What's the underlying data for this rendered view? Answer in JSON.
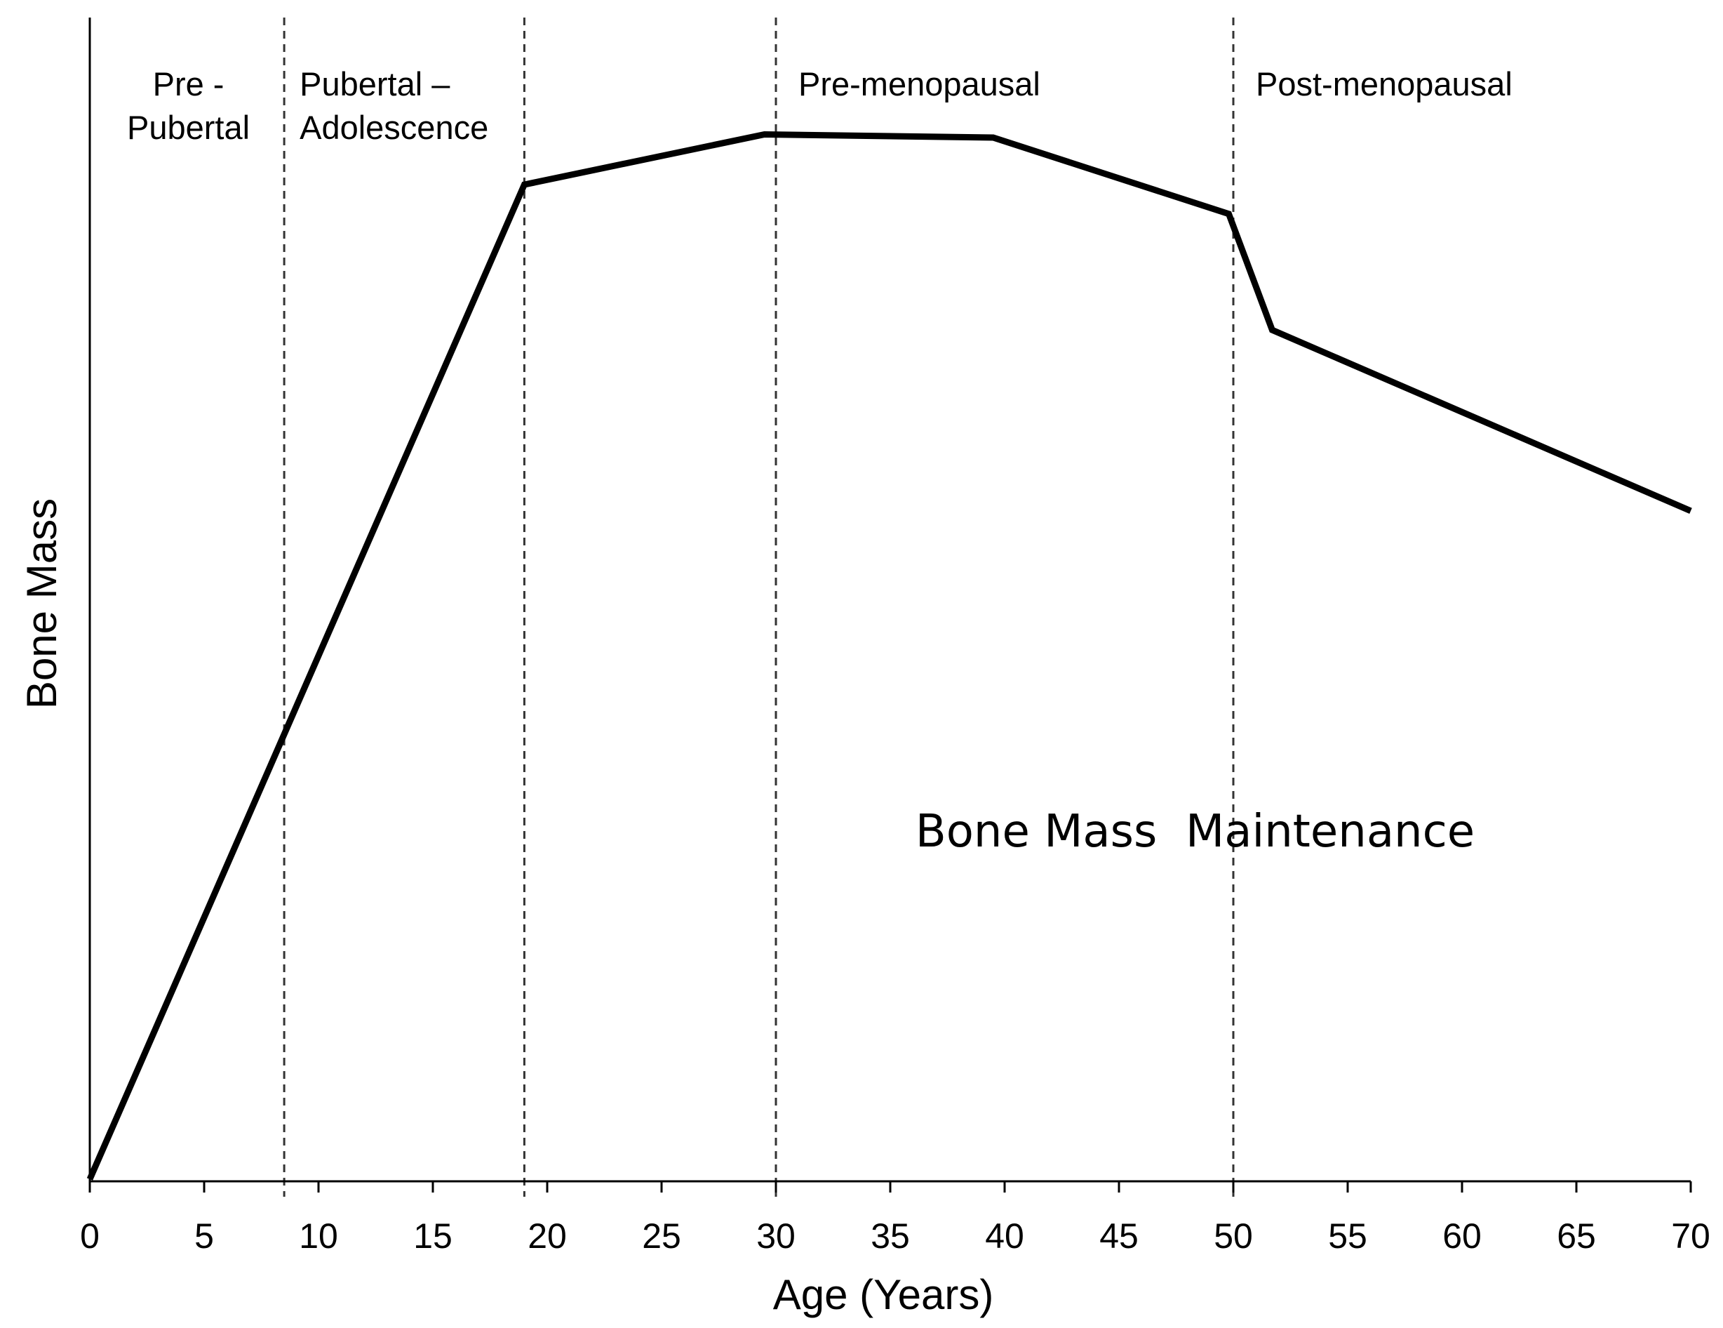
{
  "chart_data": {
    "type": "line",
    "xlabel": "Age (Years)",
    "ylabel": "Bone Mass",
    "xlim": [
      0,
      70
    ],
    "ylim": [
      0,
      100
    ],
    "x_ticks": [
      "0",
      "5",
      "10",
      "15",
      "20",
      "25",
      "30",
      "35",
      "40",
      "45",
      "50",
      "55",
      "60",
      "65",
      "70"
    ],
    "y_ticks_shown": false,
    "grid": false,
    "legend": "none",
    "series": [
      {
        "x": [
          0,
          19,
          29.5,
          39.5,
          49.8,
          51.7,
          70
        ],
        "y": [
          0,
          95.1,
          99.9,
          99.6,
          92.3,
          81.2,
          63.9
        ]
      }
    ],
    "phase_boundaries": [
      8.5,
      19,
      30,
      50
    ],
    "phase_labels": [
      {
        "lines": [
          "Pre -",
          "Pubertal"
        ],
        "x_start": 0,
        "x_end": 8.5
      },
      {
        "lines": [
          "Pubertal –",
          "Adolescence"
        ],
        "x_start": 8.5,
        "x_end": 19
      },
      {
        "lines": [
          "Pre-menopausal"
        ],
        "x_start": 30,
        "x_end": 50
      },
      {
        "lines": [
          "Post-menopausal"
        ],
        "x_start": 50,
        "x_end": 70
      }
    ],
    "annotation": {
      "text": "Bone Mass  Maintenance",
      "x": 36.1,
      "y": 31.8
    },
    "line_color": "#000000",
    "boundary_style": "dashed"
  }
}
